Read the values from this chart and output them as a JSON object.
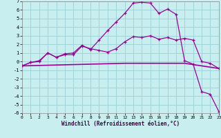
{
  "xlabel": "Windchill (Refroidissement éolien,°C)",
  "bg_color": "#c8eef0",
  "grid_color": "#a0d4d8",
  "line_color": "#990099",
  "xlim": [
    0,
    23
  ],
  "ylim": [
    -6,
    7
  ],
  "xticks": [
    0,
    1,
    2,
    3,
    4,
    5,
    6,
    7,
    8,
    9,
    10,
    11,
    12,
    13,
    14,
    15,
    16,
    17,
    18,
    19,
    20,
    21,
    22,
    23
  ],
  "yticks": [
    -6,
    -5,
    -4,
    -3,
    -2,
    -1,
    0,
    1,
    2,
    3,
    4,
    5,
    6,
    7
  ],
  "line1_x": [
    0,
    1,
    2,
    3,
    4,
    5,
    6,
    7,
    8,
    9,
    10,
    11,
    12,
    13,
    14,
    15,
    16,
    17,
    18,
    19,
    20,
    21,
    22,
    23
  ],
  "line1_y": [
    -0.5,
    -0.1,
    0.0,
    1.0,
    0.5,
    0.8,
    0.8,
    1.8,
    1.5,
    1.3,
    1.1,
    1.5,
    2.3,
    2.9,
    2.8,
    3.0,
    2.6,
    2.8,
    2.5,
    2.7,
    2.5,
    0.0,
    -0.2,
    -0.8
  ],
  "line2_x": [
    0,
    1,
    2,
    3,
    4,
    5,
    6,
    7,
    8,
    9,
    10,
    11,
    12,
    13,
    14,
    15,
    16,
    17,
    18,
    19,
    20,
    21,
    22,
    23
  ],
  "line2_y": [
    -0.5,
    -0.1,
    0.1,
    1.0,
    0.5,
    0.9,
    1.0,
    1.9,
    1.4,
    2.5,
    3.6,
    4.6,
    5.6,
    6.8,
    6.9,
    6.8,
    5.6,
    6.1,
    5.5,
    0.1,
    -0.3,
    -3.5,
    -3.8,
    -5.8
  ],
  "line3_x": [
    0,
    12,
    19,
    23
  ],
  "line3_y": [
    -0.5,
    -0.2,
    -0.2,
    -0.8
  ]
}
